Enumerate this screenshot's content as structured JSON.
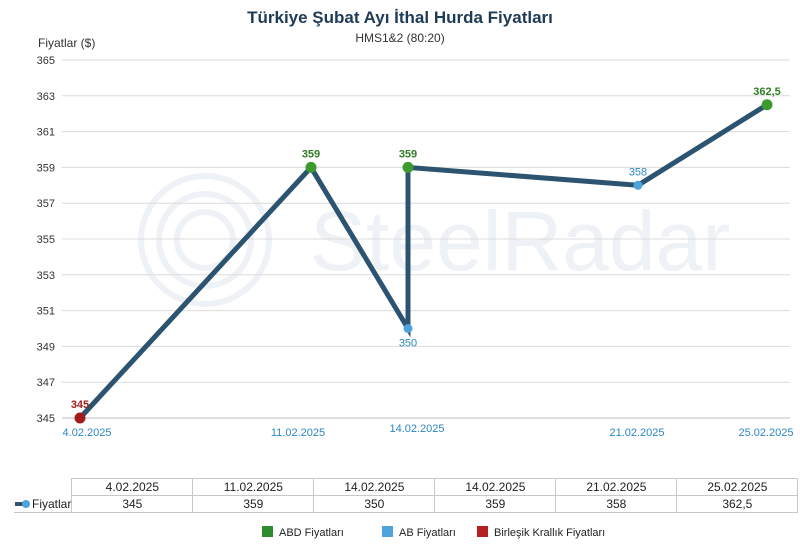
{
  "chart_data": {
    "type": "line",
    "title": "Türkiye Şubat Ayı İthal Hurda Fiyatları",
    "subtitle": "HMS1&2 (80:20)",
    "ylabel": "Fiyatlar ($)",
    "watermark": "SteelRadar",
    "ylim": [
      345,
      365
    ],
    "yticks": [
      "345",
      "347",
      "349",
      "351",
      "353",
      "355",
      "357",
      "359",
      "361",
      "363",
      "365"
    ],
    "categories": [
      "4.02.2025",
      "11.02.2025",
      "14.02.2025",
      "14.02.2025",
      "21.02.2025",
      "25.02.2025"
    ],
    "series": [
      {
        "name": "Fiyatlar",
        "color": "#2c5470",
        "values": [
          345,
          359,
          350,
          359,
          358,
          362.5
        ],
        "labels": [
          "345",
          "359",
          "350",
          "359",
          "358",
          "362,5"
        ],
        "point_colors": [
          "#a01c1c",
          "#3c9a2e",
          "#4fa3dc",
          "#3c9a2e",
          "#4fa3dc",
          "#3c9a2e"
        ],
        "label_colors": [
          "#a01c1c",
          "#2e7d23",
          "#2d86c2",
          "#2e7d23",
          "#2d86c2",
          "#2e7d23"
        ]
      }
    ],
    "grid": true,
    "legend": [
      {
        "label": "ABD Fiyatları",
        "color": "#2e8b2e"
      },
      {
        "label": "AB Fiyatları",
        "color": "#4fa3dc"
      },
      {
        "label": "Birleşik Krallık Fiyatları",
        "color": "#b22222"
      }
    ],
    "legend_position": "bottom",
    "table": {
      "row_label": "Fiyatlar",
      "headers": [
        "4.02.2025",
        "11.02.2025",
        "14.02.2025",
        "14.02.2025",
        "21.02.2025",
        "25.02.2025"
      ],
      "values": [
        "345",
        "359",
        "350",
        "359",
        "358",
        "362,5"
      ]
    }
  }
}
